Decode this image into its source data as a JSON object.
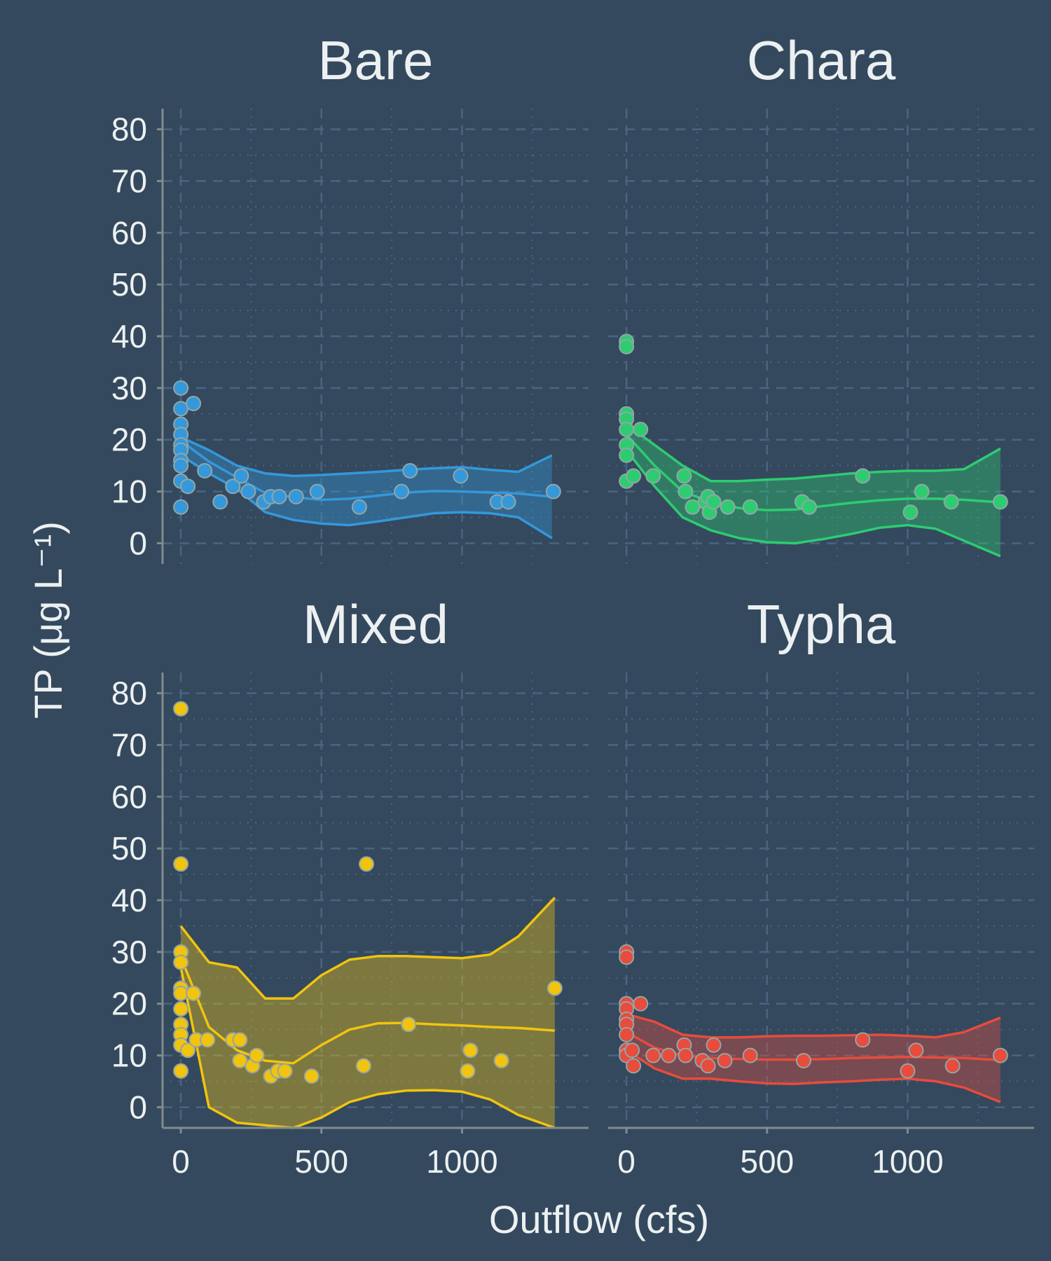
{
  "chart_data": {
    "type": "scatter",
    "facet_layout": "2x2",
    "xlabel": "Outflow (cfs)",
    "ylabel": "TP (μg L⁻¹)",
    "xlim": [
      -65,
      1450
    ],
    "ylim": [
      -4,
      84
    ],
    "x_ticks": [
      0,
      500,
      1000
    ],
    "y_ticks": [
      0,
      10,
      20,
      30,
      40,
      50,
      60,
      70,
      80
    ],
    "grid": "dashed major, dotted minor",
    "panels": [
      {
        "title": "Bare",
        "color": "#3498db",
        "points": [
          [
            0,
            30
          ],
          [
            0,
            26
          ],
          [
            0,
            23
          ],
          [
            0,
            21
          ],
          [
            0,
            19
          ],
          [
            0,
            18
          ],
          [
            0,
            16
          ],
          [
            0,
            15
          ],
          [
            0,
            12
          ],
          [
            0,
            7
          ],
          [
            45,
            27
          ],
          [
            25,
            11
          ],
          [
            85,
            14
          ],
          [
            140,
            8
          ],
          [
            185,
            11
          ],
          [
            215,
            13
          ],
          [
            240,
            10
          ],
          [
            295,
            8
          ],
          [
            320,
            9
          ],
          [
            350,
            9
          ],
          [
            410,
            9
          ],
          [
            485,
            10
          ],
          [
            635,
            7
          ],
          [
            785,
            10
          ],
          [
            815,
            14
          ],
          [
            995,
            13
          ],
          [
            1125,
            8
          ],
          [
            1165,
            8
          ],
          [
            1325,
            10
          ]
        ],
        "fit_x": [
          0,
          100,
          200,
          300,
          400,
          500,
          600,
          700,
          800,
          900,
          1000,
          1100,
          1200,
          1320
        ],
        "fit_y": [
          19.8,
          15.8,
          12.7,
          9.7,
          8.9,
          8.4,
          8.6,
          9.2,
          9.8,
          10.1,
          10.0,
          9.8,
          9.6,
          9.0
        ],
        "ci_upper": [
          20.5,
          18.0,
          15.0,
          13.5,
          13.0,
          13.2,
          13.5,
          13.8,
          14.2,
          14.5,
          14.7,
          14.2,
          13.8,
          17.0
        ],
        "ci_lower": [
          17.0,
          13.5,
          10.5,
          6.0,
          4.5,
          3.8,
          3.5,
          4.2,
          5.0,
          5.8,
          6.0,
          5.8,
          5.0,
          1.0
        ]
      },
      {
        "title": "Chara",
        "color": "#2ecc71",
        "points": [
          [
            0,
            39
          ],
          [
            0,
            38
          ],
          [
            0,
            25
          ],
          [
            0,
            24
          ],
          [
            0,
            22
          ],
          [
            0,
            19
          ],
          [
            0,
            17
          ],
          [
            0,
            12
          ],
          [
            25,
            13
          ],
          [
            50,
            22
          ],
          [
            95,
            13
          ],
          [
            205,
            13
          ],
          [
            210,
            10
          ],
          [
            235,
            7
          ],
          [
            280,
            8
          ],
          [
            290,
            9
          ],
          [
            295,
            6
          ],
          [
            310,
            8
          ],
          [
            360,
            7
          ],
          [
            440,
            7
          ],
          [
            625,
            8
          ],
          [
            650,
            7
          ],
          [
            840,
            13
          ],
          [
            1010,
            6
          ],
          [
            1050,
            10
          ],
          [
            1155,
            8
          ],
          [
            1330,
            8
          ]
        ],
        "fit_x": [
          0,
          100,
          200,
          300,
          400,
          500,
          600,
          700,
          800,
          900,
          1000,
          1100,
          1200,
          1330
        ],
        "fit_y": [
          21.0,
          15.0,
          10.0,
          8.0,
          6.8,
          6.4,
          6.5,
          7.2,
          7.8,
          8.3,
          8.6,
          8.6,
          8.4,
          7.9
        ],
        "ci_upper": [
          23.0,
          19.0,
          15.0,
          12.0,
          12.0,
          12.3,
          12.5,
          13.0,
          13.5,
          13.8,
          14.0,
          14.0,
          14.3,
          18.3
        ],
        "ci_lower": [
          18.0,
          11.0,
          5.0,
          2.5,
          1.0,
          0.2,
          0.0,
          0.8,
          1.8,
          3.0,
          3.5,
          2.8,
          0.5,
          -2.5
        ]
      },
      {
        "title": "Mixed",
        "color": "#f1c40f",
        "points": [
          [
            0,
            77
          ],
          [
            0,
            47
          ],
          [
            0,
            30
          ],
          [
            0,
            28
          ],
          [
            0,
            23
          ],
          [
            0,
            22
          ],
          [
            0,
            19
          ],
          [
            0,
            16
          ],
          [
            0,
            14
          ],
          [
            0,
            12
          ],
          [
            0,
            7
          ],
          [
            45,
            22
          ],
          [
            25,
            11
          ],
          [
            55,
            13
          ],
          [
            95,
            13
          ],
          [
            185,
            13
          ],
          [
            210,
            13
          ],
          [
            210,
            9
          ],
          [
            255,
            8
          ],
          [
            270,
            10
          ],
          [
            320,
            6
          ],
          [
            345,
            7
          ],
          [
            370,
            7
          ],
          [
            465,
            6
          ],
          [
            650,
            8
          ],
          [
            660,
            47
          ],
          [
            810,
            16
          ],
          [
            1020,
            7
          ],
          [
            1030,
            11
          ],
          [
            1140,
            9
          ],
          [
            1330,
            23
          ]
        ],
        "fit_x": [
          0,
          100,
          200,
          300,
          400,
          500,
          600,
          700,
          800,
          900,
          1000,
          1100,
          1200,
          1330
        ],
        "fit_y": [
          29.0,
          15.5,
          11.0,
          9.0,
          8.5,
          12.0,
          15.0,
          16.2,
          16.3,
          16.0,
          15.8,
          15.5,
          15.3,
          14.8
        ],
        "ci_upper": [
          35.0,
          28.0,
          27.0,
          21.0,
          21.0,
          25.5,
          28.5,
          29.2,
          29.2,
          29.0,
          28.8,
          29.5,
          33.0,
          40.5
        ],
        "ci_lower": [
          27.0,
          0.0,
          -3.0,
          -3.5,
          -4.0,
          -2.0,
          1.0,
          2.5,
          3.2,
          3.3,
          3.0,
          1.5,
          -1.5,
          -5.0
        ]
      },
      {
        "title": "Typha",
        "color": "#e74c3c",
        "points": [
          [
            0,
            30
          ],
          [
            0,
            29
          ],
          [
            0,
            20
          ],
          [
            0,
            19
          ],
          [
            0,
            17
          ],
          [
            0,
            16
          ],
          [
            0,
            14
          ],
          [
            0,
            11
          ],
          [
            0,
            10
          ],
          [
            20,
            11
          ],
          [
            25,
            8
          ],
          [
            50,
            20
          ],
          [
            95,
            10
          ],
          [
            150,
            10
          ],
          [
            205,
            12
          ],
          [
            210,
            10
          ],
          [
            270,
            9
          ],
          [
            290,
            8
          ],
          [
            310,
            12
          ],
          [
            350,
            9
          ],
          [
            440,
            10
          ],
          [
            630,
            9
          ],
          [
            840,
            13
          ],
          [
            1000,
            7
          ],
          [
            1030,
            11
          ],
          [
            1160,
            8
          ],
          [
            1330,
            10
          ]
        ],
        "fit_x": [
          0,
          100,
          200,
          300,
          400,
          500,
          600,
          700,
          800,
          900,
          1000,
          1100,
          1200,
          1330
        ],
        "fit_y": [
          14.5,
          11.5,
          10.0,
          9.5,
          9.3,
          9.2,
          9.2,
          9.3,
          9.5,
          9.6,
          9.7,
          9.6,
          9.5,
          9.1
        ],
        "ci_upper": [
          18.0,
          16.5,
          14.0,
          13.5,
          13.5,
          13.7,
          13.8,
          13.8,
          13.9,
          14.0,
          13.8,
          13.5,
          14.5,
          17.3
        ],
        "ci_lower": [
          11.0,
          7.5,
          5.5,
          5.5,
          5.0,
          4.6,
          4.5,
          4.8,
          5.0,
          5.3,
          5.5,
          5.0,
          3.8,
          1.0
        ]
      }
    ]
  }
}
